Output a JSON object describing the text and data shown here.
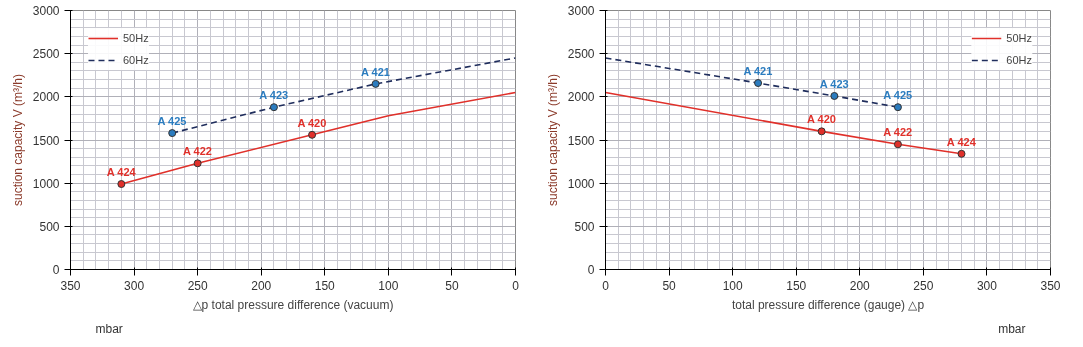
{
  "chart_data": [
    {
      "type": "line",
      "xlabel": "△p total pressure difference (vacuum)",
      "ylabel": "suction capacity V (m³/h)",
      "annotations": [
        "mbar"
      ],
      "xlim": [
        350,
        0
      ],
      "xticks": [
        350,
        300,
        250,
        200,
        150,
        100,
        50,
        0
      ],
      "ylim": [
        0,
        3000
      ],
      "yticks": [
        0,
        500,
        1000,
        1500,
        2000,
        2500,
        3000
      ],
      "grid": true,
      "legend": "top left",
      "marker": "none",
      "series": [
        {
          "name": "50Hz",
          "color": "#e0302a",
          "line_style": "solid",
          "x": [
            310,
            250,
            160,
            100,
            0
          ],
          "values": [
            990,
            1230,
            1560,
            1780,
            2050
          ]
        },
        {
          "name": "60Hz",
          "color": "#1f2d5c",
          "line_style": "dashed",
          "x": [
            270,
            190,
            110,
            0
          ],
          "values": [
            1580,
            1880,
            2150,
            2450
          ]
        },
        {
          "type": "scatter",
          "marker": "circle",
          "color": "#e0302a",
          "x": [
            310,
            250,
            160
          ],
          "values": [
            990,
            1230,
            1560
          ],
          "value_labels": [
            "A 424",
            "A 422",
            "A 420"
          ]
        },
        {
          "type": "scatter",
          "marker": "circle",
          "color": "#2b7cbf",
          "x": [
            270,
            190,
            110
          ],
          "values": [
            1580,
            1880,
            2150
          ],
          "value_labels": [
            "A 425",
            "A 423",
            "A 421"
          ]
        }
      ]
    },
    {
      "type": "line",
      "xlabel": "total pressure difference (gauge) △p",
      "ylabel": "suction capacity V (m³/h)",
      "annotations": [
        "mbar"
      ],
      "xlim": [
        0,
        350
      ],
      "xticks": [
        0,
        50,
        100,
        150,
        200,
        250,
        300,
        350
      ],
      "ylim": [
        0,
        3000
      ],
      "yticks": [
        0,
        500,
        1000,
        1500,
        2000,
        2500,
        3000
      ],
      "grid": true,
      "legend": "top right",
      "marker": "none",
      "series": [
        {
          "name": "50Hz",
          "color": "#e0302a",
          "line_style": "solid",
          "x": [
            0,
            170,
            230,
            280
          ],
          "values": [
            2050,
            1600,
            1450,
            1340
          ]
        },
        {
          "name": "60Hz",
          "color": "#1f2d5c",
          "line_style": "dashed",
          "x": [
            0,
            120,
            180,
            230
          ],
          "values": [
            2450,
            2160,
            2010,
            1880
          ]
        },
        {
          "type": "scatter",
          "marker": "circle",
          "color": "#e0302a",
          "x": [
            170,
            230,
            280
          ],
          "values": [
            1600,
            1450,
            1340
          ],
          "value_labels": [
            "A 420",
            "A 422",
            "A 424"
          ]
        },
        {
          "type": "scatter",
          "marker": "circle",
          "color": "#2b7cbf",
          "x": [
            120,
            180,
            230
          ],
          "values": [
            2160,
            2010,
            1880
          ],
          "value_labels": [
            "A 421",
            "A 423",
            "A 425"
          ]
        }
      ]
    }
  ]
}
